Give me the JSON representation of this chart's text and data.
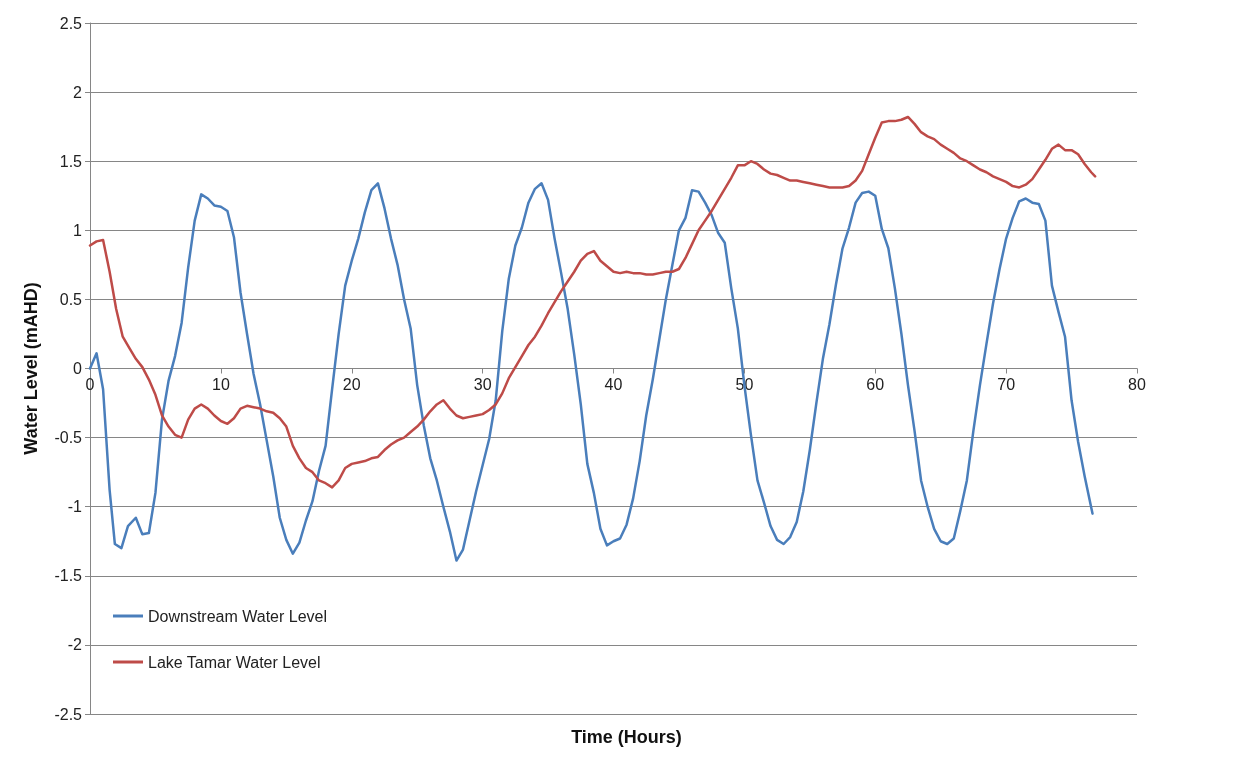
{
  "chart_data": {
    "type": "line",
    "xlabel": "Time (Hours)",
    "ylabel": "Water Level (mAHD)",
    "xlim": [
      0,
      80
    ],
    "xticks": [
      0,
      10,
      20,
      30,
      40,
      50,
      60,
      70,
      80
    ],
    "ylim": [
      -2.5,
      2.5
    ],
    "yticks": [
      -2.5,
      -2,
      -1.5,
      -1,
      -0.5,
      0,
      0.5,
      1,
      1.5,
      2,
      2.5
    ],
    "grid": "y",
    "legend": "bottom left",
    "marker": "none",
    "line_style": "solid",
    "series": [
      {
        "name": "Downstream Water Level",
        "color": "#4a7ebb",
        "x": [
          0,
          0.5,
          1,
          1.5,
          1.9,
          2.4,
          2.9,
          3.5,
          4,
          4.5,
          5,
          5.5,
          6,
          6.5,
          7,
          7.5,
          8,
          8.5,
          9,
          9.5,
          10,
          10.5,
          11,
          11.5,
          12,
          12.5,
          13,
          13.5,
          14,
          14.5,
          15,
          15.5,
          16,
          16.5,
          17,
          17.5,
          18,
          18.5,
          19,
          19.5,
          20,
          20.5,
          21,
          21.5,
          22,
          22.5,
          23,
          23.5,
          24,
          24.5,
          25,
          25.5,
          26,
          26.5,
          27,
          27.5,
          28,
          28.5,
          29,
          29.5,
          30,
          30.5,
          31,
          31.5,
          32,
          32.5,
          33,
          33.5,
          34,
          34.5,
          35,
          35.5,
          36,
          36.5,
          37,
          37.5,
          38,
          38.5,
          39,
          39.5,
          40,
          40.5,
          41,
          41.5,
          42,
          42.5,
          43,
          43.5,
          44,
          44.5,
          45,
          45.5,
          46,
          46.5,
          47,
          47.5,
          48,
          48.5,
          49,
          49.5,
          50,
          50.5,
          51,
          51.5,
          52,
          52.5,
          53,
          53.5,
          54,
          54.5,
          55,
          55.5,
          56,
          56.5,
          57,
          57.5,
          58,
          58.5,
          59,
          59.5,
          60,
          60.5,
          61,
          61.5,
          62,
          62.5,
          63,
          63.5,
          64,
          64.5,
          65,
          65.5,
          66,
          66.5,
          67,
          67.5,
          68,
          68.5,
          69,
          69.5,
          70,
          70.5,
          71,
          71.5,
          72,
          72.5,
          73,
          73.5,
          74,
          74.5,
          75,
          75.5,
          76,
          76.6
        ],
        "values": [
          0,
          0.11,
          -0.15,
          -0.88,
          -1.27,
          -1.3,
          -1.14,
          -1.08,
          -1.2,
          -1.19,
          -0.9,
          -0.37,
          -0.09,
          0.09,
          0.33,
          0.73,
          1.07,
          1.26,
          1.23,
          1.18,
          1.17,
          1.14,
          0.95,
          0.55,
          0.25,
          -0.04,
          -0.26,
          -0.52,
          -0.78,
          -1.08,
          -1.24,
          -1.34,
          -1.26,
          -1.1,
          -0.96,
          -0.74,
          -0.56,
          -0.15,
          0.25,
          0.6,
          0.78,
          0.94,
          1.13,
          1.29,
          1.34,
          1.16,
          0.94,
          0.75,
          0.5,
          0.29,
          -0.12,
          -0.41,
          -0.65,
          -0.81,
          -1,
          -1.18,
          -1.39,
          -1.31,
          -1.1,
          -0.89,
          -0.7,
          -0.51,
          -0.23,
          0.27,
          0.65,
          0.89,
          1.02,
          1.2,
          1.3,
          1.34,
          1.22,
          0.94,
          0.69,
          0.43,
          0.1,
          -0.26,
          -0.69,
          -0.9,
          -1.16,
          -1.28,
          -1.25,
          -1.23,
          -1.13,
          -0.94,
          -0.67,
          -0.34,
          -0.08,
          0.21,
          0.5,
          0.75,
          1,
          1.09,
          1.29,
          1.28,
          1.2,
          1.11,
          0.98,
          0.91,
          0.58,
          0.29,
          -0.12,
          -0.48,
          -0.81,
          -0.97,
          -1.14,
          -1.24,
          -1.27,
          -1.22,
          -1.11,
          -0.89,
          -0.59,
          -0.25,
          0.07,
          0.32,
          0.61,
          0.87,
          1.02,
          1.2,
          1.27,
          1.28,
          1.25,
          1.01,
          0.87,
          0.58,
          0.25,
          -0.12,
          -0.45,
          -0.81,
          -1,
          -1.16,
          -1.25,
          -1.27,
          -1.23,
          -1.03,
          -0.81,
          -0.45,
          -0.12,
          0.18,
          0.47,
          0.72,
          0.94,
          1.09,
          1.21,
          1.23,
          1.2,
          1.19,
          1.07,
          0.6,
          0.41,
          0.23,
          -0.23,
          -0.53,
          -0.78,
          -1.05
        ]
      },
      {
        "name": "Lake Tamar Water Level",
        "color": "#be4b48",
        "x": [
          0,
          0.5,
          1,
          1.5,
          2,
          2.5,
          3,
          3.5,
          4,
          4.5,
          5,
          5.5,
          6,
          6.5,
          7,
          7.5,
          8,
          8.5,
          9,
          9.5,
          10,
          10.5,
          11,
          11.5,
          12,
          12.5,
          13,
          13.5,
          14,
          14.5,
          15,
          15.5,
          16,
          16.5,
          17,
          17.5,
          18,
          18.5,
          19,
          19.5,
          20,
          20.5,
          21,
          21.5,
          22,
          22.5,
          23,
          23.5,
          24,
          24.5,
          25,
          25.5,
          26,
          26.5,
          27,
          27.5,
          28,
          28.5,
          29,
          29.5,
          30,
          30.5,
          31,
          31.5,
          32,
          32.5,
          33,
          33.5,
          34,
          34.5,
          35,
          35.5,
          36,
          36.5,
          37,
          37.5,
          38,
          38.5,
          39,
          39.5,
          40,
          40.5,
          41,
          41.5,
          42,
          42.5,
          43,
          43.5,
          44,
          44.5,
          45,
          45.5,
          46,
          46.5,
          47,
          47.5,
          48,
          48.5,
          49,
          49.5,
          50,
          50.5,
          51,
          51.5,
          52,
          52.5,
          53,
          53.5,
          54,
          54.5,
          55,
          55.5,
          56,
          56.5,
          57,
          57.5,
          58,
          58.5,
          59,
          59.5,
          60,
          60.5,
          61,
          61.5,
          62,
          62.5,
          63,
          63.5,
          64,
          64.5,
          65,
          65.5,
          66,
          66.5,
          67,
          67.5,
          68,
          68.5,
          69,
          69.5,
          70,
          70.5,
          71,
          71.5,
          72,
          72.5,
          73,
          73.5,
          74,
          74.5,
          75,
          75.5,
          76,
          76.5,
          76.8
        ],
        "values": [
          0.89,
          0.92,
          0.93,
          0.7,
          0.43,
          0.23,
          0.15,
          0.07,
          0.01,
          -0.08,
          -0.19,
          -0.34,
          -0.42,
          -0.48,
          -0.5,
          -0.37,
          -0.29,
          -0.26,
          -0.29,
          -0.34,
          -0.38,
          -0.4,
          -0.36,
          -0.29,
          -0.27,
          -0.28,
          -0.29,
          -0.31,
          -0.32,
          -0.36,
          -0.42,
          -0.56,
          -0.65,
          -0.72,
          -0.75,
          -0.81,
          -0.83,
          -0.86,
          -0.81,
          -0.72,
          -0.69,
          -0.68,
          -0.67,
          -0.65,
          -0.64,
          -0.59,
          -0.55,
          -0.52,
          -0.5,
          -0.46,
          -0.42,
          -0.37,
          -0.31,
          -0.26,
          -0.23,
          -0.29,
          -0.34,
          -0.36,
          -0.35,
          -0.34,
          -0.33,
          -0.3,
          -0.26,
          -0.18,
          -0.07,
          0.01,
          0.09,
          0.17,
          0.23,
          0.31,
          0.4,
          0.48,
          0.56,
          0.63,
          0.7,
          0.78,
          0.83,
          0.85,
          0.78,
          0.74,
          0.7,
          0.69,
          0.7,
          0.69,
          0.69,
          0.68,
          0.68,
          0.69,
          0.7,
          0.7,
          0.72,
          0.8,
          0.9,
          1,
          1.07,
          1.14,
          1.22,
          1.3,
          1.38,
          1.47,
          1.47,
          1.5,
          1.48,
          1.44,
          1.41,
          1.4,
          1.38,
          1.36,
          1.36,
          1.35,
          1.34,
          1.33,
          1.32,
          1.31,
          1.31,
          1.31,
          1.32,
          1.36,
          1.43,
          1.55,
          1.67,
          1.78,
          1.79,
          1.79,
          1.8,
          1.82,
          1.77,
          1.71,
          1.68,
          1.66,
          1.62,
          1.59,
          1.56,
          1.52,
          1.5,
          1.47,
          1.44,
          1.42,
          1.39,
          1.37,
          1.35,
          1.32,
          1.31,
          1.33,
          1.37,
          1.44,
          1.51,
          1.59,
          1.62,
          1.58,
          1.58,
          1.55,
          1.48,
          1.42,
          1.39
        ]
      }
    ]
  }
}
